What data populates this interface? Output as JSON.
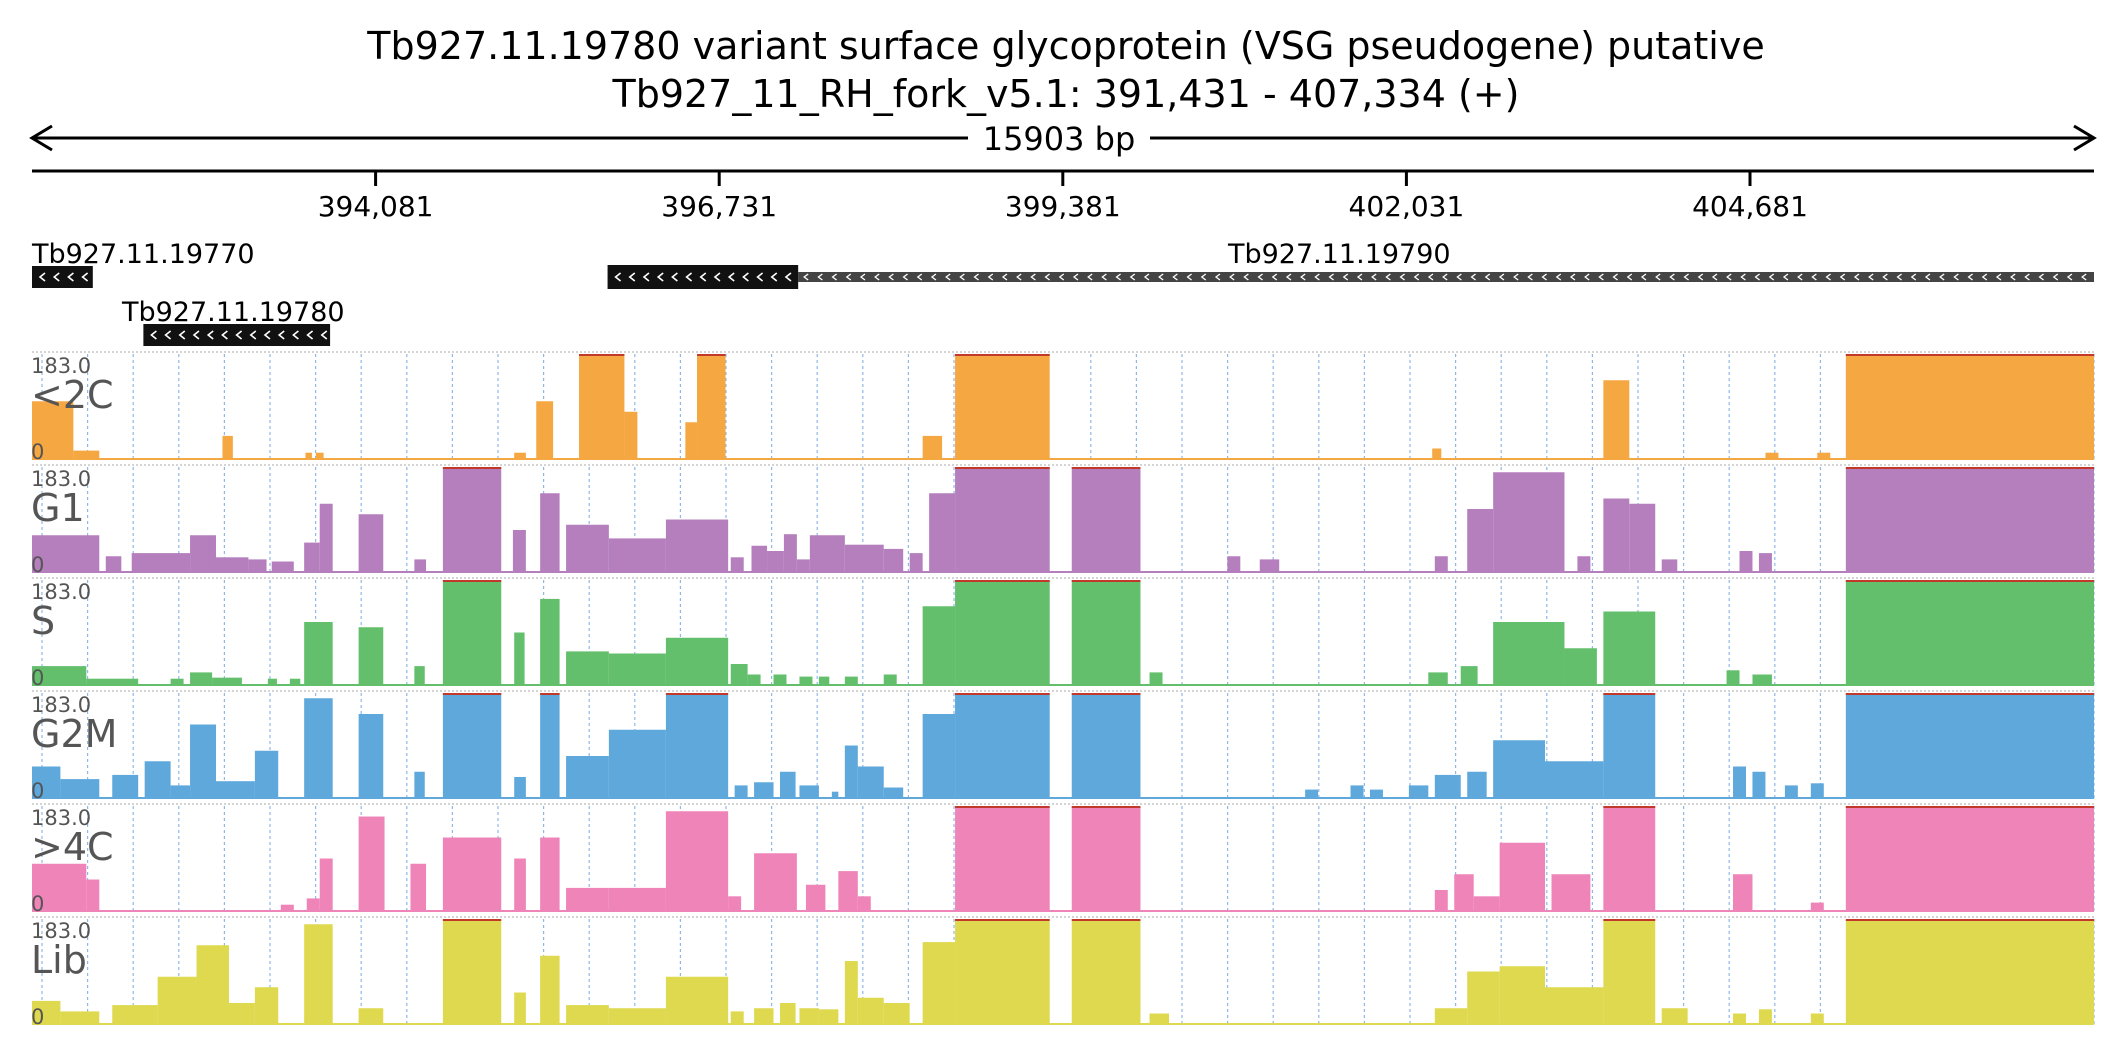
{
  "title_line1": "Tb927.11.19780  variant surface glycoprotein (VSG  pseudogene)  putative",
  "title_line2": "Tb927_11_RH_fork_v5.1: 391,431 - 407,334 (+)",
  "span_label": "15903 bp",
  "chart_data": {
    "type": "area",
    "title": "Tb927.11.19780  variant surface glycoprotein (VSG  pseudogene)  putative",
    "subtitle": "Tb927_11_RH_fork_v5.1: 391,431 - 407,334 (+)",
    "region": {
      "chrom": "Tb927_11_RH_fork_v5.1",
      "start": 391431,
      "end": 407334,
      "strand": "+",
      "length_bp": 15903
    },
    "x_ticks": [
      {
        "value": 394081,
        "label": "394,081"
      },
      {
        "value": 396731,
        "label": "396,731"
      },
      {
        "value": 399381,
        "label": "399,381"
      },
      {
        "value": 402031,
        "label": "402,031"
      },
      {
        "value": 404681,
        "label": "404,681"
      }
    ],
    "genes": [
      {
        "name": "Tb927.11.19770",
        "start": 391431,
        "end": 391900,
        "strand": "-",
        "row": 0
      },
      {
        "name": "Tb927.11.19780",
        "start": 392290,
        "end": 393730,
        "strand": "-",
        "row": 1
      },
      {
        "name": "Tb927.11.19790",
        "start": 395870,
        "end": 407334,
        "strand": "-",
        "row": 0,
        "thick_end": 397340
      }
    ],
    "ylim": [
      0,
      183.0
    ],
    "y_max_label": "183.0",
    "y_min_label": "0",
    "tracks": [
      {
        "name": "<2C",
        "color": "#f5a742",
        "segments": [
          [
            391431,
            391750,
            0.55
          ],
          [
            391750,
            391950,
            0.08
          ],
          [
            392900,
            392980,
            0.22
          ],
          [
            393540,
            393590,
            0.06
          ],
          [
            393620,
            393680,
            0.06
          ],
          [
            395150,
            395240,
            0.06
          ],
          [
            395320,
            395450,
            0.55
          ],
          [
            395650,
            396000,
            1.0
          ],
          [
            396000,
            396100,
            0.45
          ],
          [
            396470,
            396560,
            0.35
          ],
          [
            396560,
            396780,
            1.0
          ],
          [
            398300,
            398450,
            0.22
          ],
          [
            398550,
            399280,
            1.0
          ],
          [
            402230,
            402300,
            0.1
          ],
          [
            403550,
            403750,
            0.75
          ],
          [
            404800,
            404900,
            0.06
          ],
          [
            405200,
            405300,
            0.06
          ],
          [
            405420,
            407334,
            1.0
          ]
        ]
      },
      {
        "name": "G1",
        "color": "#b57fbe",
        "segments": [
          [
            391431,
            391950,
            0.35
          ],
          [
            392000,
            392120,
            0.15
          ],
          [
            392200,
            392650,
            0.18
          ],
          [
            392650,
            392850,
            0.35
          ],
          [
            392850,
            393100,
            0.14
          ],
          [
            393100,
            393240,
            0.12
          ],
          [
            393280,
            393450,
            0.1
          ],
          [
            393530,
            393650,
            0.28
          ],
          [
            393650,
            393750,
            0.65
          ],
          [
            393950,
            394140,
            0.55
          ],
          [
            394380,
            394470,
            0.12
          ],
          [
            394600,
            395050,
            1.0
          ],
          [
            395140,
            395240,
            0.4
          ],
          [
            395350,
            395500,
            0.75
          ],
          [
            395550,
            395880,
            0.45
          ],
          [
            395880,
            396320,
            0.32
          ],
          [
            396320,
            396800,
            0.5
          ],
          [
            396820,
            396920,
            0.14
          ],
          [
            396980,
            397100,
            0.25
          ],
          [
            397100,
            397230,
            0.2
          ],
          [
            397230,
            397330,
            0.36
          ],
          [
            397330,
            397430,
            0.12
          ],
          [
            397430,
            397700,
            0.35
          ],
          [
            397700,
            398000,
            0.26
          ],
          [
            398000,
            398150,
            0.22
          ],
          [
            398200,
            398300,
            0.18
          ],
          [
            398350,
            398550,
            0.75
          ],
          [
            398550,
            399280,
            1.0
          ],
          [
            399450,
            399980,
            1.0
          ],
          [
            400650,
            400750,
            0.15
          ],
          [
            400900,
            401050,
            0.12
          ],
          [
            402250,
            402350,
            0.15
          ],
          [
            402500,
            402700,
            0.6
          ],
          [
            402700,
            403250,
            0.95
          ],
          [
            403350,
            403450,
            0.15
          ],
          [
            403550,
            403750,
            0.7
          ],
          [
            403750,
            403950,
            0.65
          ],
          [
            404000,
            404120,
            0.12
          ],
          [
            404600,
            404700,
            0.2
          ],
          [
            404750,
            404850,
            0.18
          ],
          [
            405420,
            407334,
            1.0
          ]
        ]
      },
      {
        "name": "S",
        "color": "#63bf6c",
        "segments": [
          [
            391431,
            391850,
            0.18
          ],
          [
            391850,
            392250,
            0.06
          ],
          [
            392500,
            392600,
            0.06
          ],
          [
            392650,
            392820,
            0.12
          ],
          [
            392820,
            393050,
            0.07
          ],
          [
            393250,
            393320,
            0.06
          ],
          [
            393420,
            393500,
            0.06
          ],
          [
            393530,
            393750,
            0.6
          ],
          [
            393950,
            394140,
            0.55
          ],
          [
            394380,
            394460,
            0.18
          ],
          [
            394600,
            395050,
            1.0
          ],
          [
            395150,
            395230,
            0.5
          ],
          [
            395350,
            395500,
            0.82
          ],
          [
            395550,
            395880,
            0.32
          ],
          [
            395880,
            396320,
            0.3
          ],
          [
            396320,
            396800,
            0.45
          ],
          [
            396820,
            396950,
            0.2
          ],
          [
            396950,
            397050,
            0.1
          ],
          [
            397150,
            397250,
            0.1
          ],
          [
            397350,
            397450,
            0.08
          ],
          [
            397500,
            397580,
            0.08
          ],
          [
            397700,
            397800,
            0.08
          ],
          [
            398000,
            398100,
            0.1
          ],
          [
            398300,
            398550,
            0.75
          ],
          [
            398550,
            399280,
            1.0
          ],
          [
            399450,
            399980,
            1.0
          ],
          [
            400050,
            400150,
            0.12
          ],
          [
            402200,
            402350,
            0.12
          ],
          [
            402450,
            402580,
            0.18
          ],
          [
            402700,
            403250,
            0.6
          ],
          [
            403250,
            403500,
            0.35
          ],
          [
            403550,
            403950,
            0.7
          ],
          [
            404500,
            404600,
            0.14
          ],
          [
            404700,
            404850,
            0.1
          ],
          [
            405420,
            407334,
            1.0
          ]
        ]
      },
      {
        "name": "G2M",
        "color": "#5fa8dc",
        "segments": [
          [
            391431,
            391650,
            0.3
          ],
          [
            391650,
            391950,
            0.18
          ],
          [
            392050,
            392250,
            0.22
          ],
          [
            392300,
            392500,
            0.35
          ],
          [
            392500,
            392650,
            0.12
          ],
          [
            392650,
            392850,
            0.7
          ],
          [
            392850,
            393150,
            0.16
          ],
          [
            393150,
            393330,
            0.45
          ],
          [
            393530,
            393750,
            0.95
          ],
          [
            393950,
            394140,
            0.8
          ],
          [
            394380,
            394460,
            0.25
          ],
          [
            394600,
            395050,
            1.0
          ],
          [
            395150,
            395240,
            0.2
          ],
          [
            395350,
            395500,
            1.0
          ],
          [
            395550,
            395880,
            0.4
          ],
          [
            395880,
            396320,
            0.65
          ],
          [
            396320,
            396800,
            1.0
          ],
          [
            396850,
            396950,
            0.12
          ],
          [
            397000,
            397150,
            0.15
          ],
          [
            397200,
            397320,
            0.25
          ],
          [
            397350,
            397500,
            0.12
          ],
          [
            397600,
            397650,
            0.06
          ],
          [
            397700,
            397800,
            0.5
          ],
          [
            397800,
            398000,
            0.3
          ],
          [
            398000,
            398150,
            0.1
          ],
          [
            398300,
            398550,
            0.8
          ],
          [
            398550,
            399280,
            1.0
          ],
          [
            399450,
            399980,
            1.0
          ],
          [
            401250,
            401350,
            0.08
          ],
          [
            401600,
            401700,
            0.12
          ],
          [
            401750,
            401850,
            0.08
          ],
          [
            402050,
            402200,
            0.12
          ],
          [
            402250,
            402450,
            0.22
          ],
          [
            402500,
            402650,
            0.25
          ],
          [
            402700,
            403100,
            0.55
          ],
          [
            403100,
            403550,
            0.35
          ],
          [
            403550,
            403950,
            1.0
          ],
          [
            404550,
            404650,
            0.3
          ],
          [
            404700,
            404800,
            0.25
          ],
          [
            404950,
            405050,
            0.12
          ],
          [
            405150,
            405250,
            0.14
          ],
          [
            405420,
            407334,
            1.0
          ]
        ]
      },
      {
        "name": ">4C",
        "color": "#ef84b8",
        "segments": [
          [
            391431,
            391850,
            0.45
          ],
          [
            391850,
            391950,
            0.3
          ],
          [
            393350,
            393450,
            0.06
          ],
          [
            393550,
            393650,
            0.12
          ],
          [
            393650,
            393750,
            0.5
          ],
          [
            393950,
            394150,
            0.9
          ],
          [
            394350,
            394470,
            0.45
          ],
          [
            394600,
            395050,
            0.7
          ],
          [
            395150,
            395240,
            0.5
          ],
          [
            395350,
            395500,
            0.7
          ],
          [
            395550,
            395880,
            0.22
          ],
          [
            395880,
            396320,
            0.22
          ],
          [
            396320,
            396800,
            0.95
          ],
          [
            396800,
            396900,
            0.14
          ],
          [
            397000,
            397330,
            0.55
          ],
          [
            397400,
            397550,
            0.25
          ],
          [
            397650,
            397800,
            0.38
          ],
          [
            397800,
            397900,
            0.14
          ],
          [
            398550,
            399280,
            1.0
          ],
          [
            399450,
            399980,
            1.0
          ],
          [
            402250,
            402350,
            0.2
          ],
          [
            402400,
            402550,
            0.35
          ],
          [
            402550,
            402750,
            0.14
          ],
          [
            402750,
            403100,
            0.65
          ],
          [
            403150,
            403450,
            0.35
          ],
          [
            403550,
            403950,
            1.0
          ],
          [
            404550,
            404700,
            0.35
          ],
          [
            405150,
            405250,
            0.08
          ],
          [
            405420,
            407334,
            1.0
          ]
        ]
      },
      {
        "name": "Lib",
        "color": "#ded94f",
        "segments": [
          [
            391431,
            391650,
            0.22
          ],
          [
            391650,
            391950,
            0.12
          ],
          [
            392050,
            392400,
            0.18
          ],
          [
            392400,
            392700,
            0.45
          ],
          [
            392700,
            392950,
            0.75
          ],
          [
            392950,
            393150,
            0.2
          ],
          [
            393150,
            393330,
            0.35
          ],
          [
            393530,
            393750,
            0.95
          ],
          [
            393950,
            394140,
            0.15
          ],
          [
            394600,
            395050,
            1.0
          ],
          [
            395150,
            395240,
            0.3
          ],
          [
            395350,
            395500,
            0.65
          ],
          [
            395550,
            395880,
            0.18
          ],
          [
            395880,
            396320,
            0.15
          ],
          [
            396320,
            396800,
            0.45
          ],
          [
            396820,
            396920,
            0.12
          ],
          [
            397000,
            397150,
            0.15
          ],
          [
            397200,
            397320,
            0.2
          ],
          [
            397350,
            397500,
            0.15
          ],
          [
            397500,
            397650,
            0.14
          ],
          [
            397700,
            397800,
            0.6
          ],
          [
            397800,
            398000,
            0.25
          ],
          [
            398000,
            398200,
            0.2
          ],
          [
            398300,
            398550,
            0.78
          ],
          [
            398550,
            399280,
            1.0
          ],
          [
            399450,
            399980,
            1.0
          ],
          [
            400050,
            400200,
            0.1
          ],
          [
            402250,
            402500,
            0.15
          ],
          [
            402500,
            402750,
            0.5
          ],
          [
            402750,
            403100,
            0.55
          ],
          [
            403100,
            403550,
            0.35
          ],
          [
            403550,
            403950,
            1.0
          ],
          [
            404000,
            404200,
            0.15
          ],
          [
            404550,
            404650,
            0.1
          ],
          [
            404750,
            404850,
            0.14
          ],
          [
            405150,
            405250,
            0.1
          ],
          [
            405420,
            407334,
            1.0
          ]
        ]
      }
    ]
  }
}
